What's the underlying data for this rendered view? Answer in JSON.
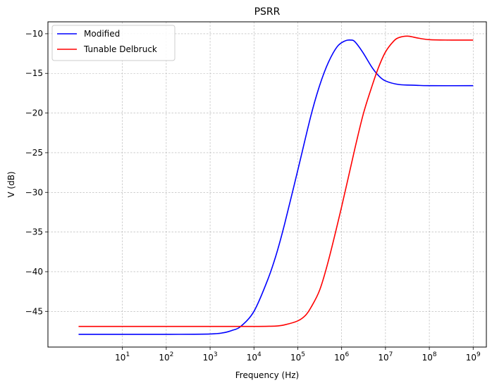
{
  "chart_data": {
    "type": "line",
    "title": "PSRR",
    "xlabel": "Frequency (Hz)",
    "ylabel": "V (dB)",
    "x_scale": "log",
    "xlim": [
      0.2,
      2000000000
    ],
    "ylim": [
      -49.5,
      -8.5
    ],
    "x_ticks": [
      {
        "value": 10,
        "base": "10",
        "exp": "1"
      },
      {
        "value": 100,
        "base": "10",
        "exp": "2"
      },
      {
        "value": 1000,
        "base": "10",
        "exp": "3"
      },
      {
        "value": 10000,
        "base": "10",
        "exp": "4"
      },
      {
        "value": 100000,
        "base": "10",
        "exp": "5"
      },
      {
        "value": 1000000,
        "base": "10",
        "exp": "6"
      },
      {
        "value": 10000000,
        "base": "10",
        "exp": "7"
      },
      {
        "value": 100000000,
        "base": "10",
        "exp": "8"
      },
      {
        "value": 1000000000,
        "base": "10",
        "exp": "9"
      }
    ],
    "y_ticks": [
      {
        "value": -10,
        "label": "−10"
      },
      {
        "value": -15,
        "label": "−15"
      },
      {
        "value": -20,
        "label": "−20"
      },
      {
        "value": -25,
        "label": "−25"
      },
      {
        "value": -30,
        "label": "−30"
      },
      {
        "value": -35,
        "label": "−35"
      },
      {
        "value": -40,
        "label": "−40"
      },
      {
        "value": -45,
        "label": "−45"
      }
    ],
    "grid": true,
    "legend_position": "top-left",
    "series": [
      {
        "name": "Modified",
        "color": "#0000ff",
        "points": [
          [
            1,
            -47.9
          ],
          [
            10,
            -47.9
          ],
          [
            100,
            -47.9
          ],
          [
            1000,
            -47.85
          ],
          [
            2000,
            -47.7
          ],
          [
            3162,
            -47.4
          ],
          [
            5000,
            -46.9
          ],
          [
            10000,
            -45.0
          ],
          [
            20000,
            -41.2
          ],
          [
            31623,
            -38.0
          ],
          [
            50000,
            -34.0
          ],
          [
            100000,
            -27.2
          ],
          [
            200000,
            -20.3
          ],
          [
            316228,
            -16.5
          ],
          [
            500000,
            -13.6
          ],
          [
            800000,
            -11.6
          ],
          [
            1200000,
            -10.9
          ],
          [
            1600000,
            -10.8
          ],
          [
            2000000,
            -11.0
          ],
          [
            3000000,
            -12.3
          ],
          [
            5000000,
            -14.3
          ],
          [
            7000000,
            -15.3
          ],
          [
            10000000,
            -15.95
          ],
          [
            20000000,
            -16.4
          ],
          [
            50000000,
            -16.5
          ],
          [
            100000000,
            -16.55
          ],
          [
            1000000000,
            -16.55
          ]
        ]
      },
      {
        "name": "Tunable Delbruck",
        "color": "#ff0000",
        "points": [
          [
            1,
            -46.9
          ],
          [
            10,
            -46.9
          ],
          [
            100,
            -46.9
          ],
          [
            1000,
            -46.9
          ],
          [
            10000,
            -46.9
          ],
          [
            31623,
            -46.85
          ],
          [
            50000,
            -46.7
          ],
          [
            100000,
            -46.2
          ],
          [
            150000,
            -45.5
          ],
          [
            200000,
            -44.5
          ],
          [
            316228,
            -42.3
          ],
          [
            500000,
            -38.6
          ],
          [
            1000000,
            -31.8
          ],
          [
            2000000,
            -24.5
          ],
          [
            3162278,
            -20.0
          ],
          [
            5000000,
            -16.5
          ],
          [
            7000000,
            -14.2
          ],
          [
            10000000,
            -12.3
          ],
          [
            15000000,
            -11.0
          ],
          [
            20000000,
            -10.5
          ],
          [
            31623000,
            -10.3
          ],
          [
            50000000,
            -10.5
          ],
          [
            100000000,
            -10.75
          ],
          [
            316228000,
            -10.8
          ],
          [
            1000000000,
            -10.8
          ]
        ]
      }
    ]
  }
}
